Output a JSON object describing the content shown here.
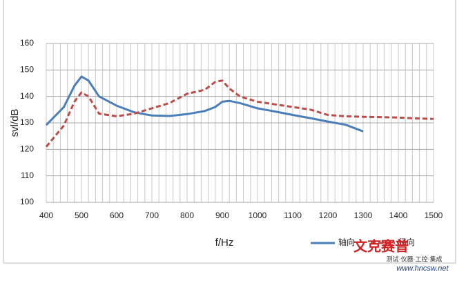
{
  "chart_data": {
    "type": "line",
    "x_label": "f/Hz",
    "y_label": "svl/dB",
    "x": [
      400,
      450,
      480,
      500,
      520,
      550,
      600,
      650,
      700,
      750,
      800,
      850,
      880,
      900,
      920,
      950,
      1000,
      1050,
      1100,
      1150,
      1200,
      1250,
      1300,
      1350,
      1400,
      1450,
      1500
    ],
    "series": [
      {
        "name": "轴向",
        "color": "#4a7ebb",
        "dash": false,
        "values": [
          129.2,
          136,
          144,
          147.5,
          146,
          140,
          136.5,
          134,
          132.8,
          132.6,
          133.3,
          134.5,
          136,
          138,
          138.3,
          137.5,
          135.5,
          134.3,
          133,
          131.8,
          130.5,
          129.3,
          126.8,
          null,
          null,
          null,
          null
        ]
      },
      {
        "name": "径向",
        "color": "#be4b48",
        "dash": true,
        "values": [
          121,
          129,
          138,
          141.5,
          140,
          133.5,
          132.5,
          133.5,
          135.5,
          137.5,
          141,
          142.5,
          145.5,
          146,
          143,
          140,
          138,
          137,
          136,
          135,
          133,
          132.5,
          132.3,
          132.2,
          132,
          131.7,
          131.5
        ]
      }
    ],
    "xlim": [
      400,
      1500
    ],
    "xticks": [
      400,
      500,
      600,
      700,
      800,
      900,
      1000,
      1100,
      1200,
      1300,
      1400,
      1500
    ],
    "xgrid": [
      400,
      420,
      440,
      460,
      480,
      500,
      520,
      540,
      560,
      580,
      600,
      620,
      640,
      660,
      680,
      700,
      720,
      740,
      760,
      780,
      800,
      820,
      840,
      860,
      880,
      900,
      920,
      940,
      960,
      980,
      1000,
      1020,
      1040,
      1060,
      1080,
      1100,
      1120,
      1140,
      1160,
      1180,
      1200,
      1220,
      1240,
      1260,
      1280,
      1300,
      1320,
      1340,
      1360,
      1380,
      1400,
      1420,
      1440,
      1460,
      1480,
      1500
    ],
    "ylim": [
      100,
      160
    ],
    "yticks": [
      100,
      110,
      120,
      130,
      140,
      150,
      160
    ],
    "grid": true
  },
  "watermark": {
    "brand": "文克赛普",
    "slogan": "测试·仪器·工控·集成",
    "url": "www.hncsw.net"
  }
}
